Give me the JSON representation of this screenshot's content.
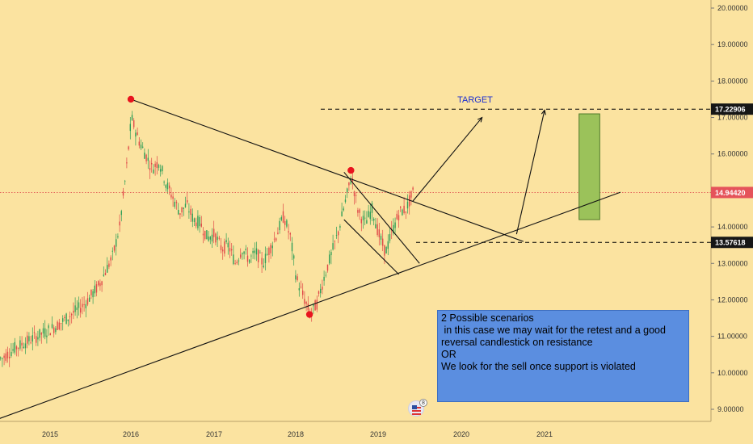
{
  "chart_data": {
    "type": "candlestick",
    "x_ticks": [
      "2015",
      "2016",
      "2017",
      "2018",
      "2019",
      "2020",
      "2021"
    ],
    "y_ticks": [
      "20.00000",
      "19.00000",
      "18.00000",
      "17.00000",
      "16.00000",
      "15.00000",
      "14.00000",
      "13.00000",
      "12.00000",
      "11.00000",
      "10.00000",
      "9.00000"
    ],
    "ylim": [
      8.6,
      20.1
    ],
    "price_tags": [
      {
        "label": "17.22906",
        "value": 17.22906,
        "style": "dark"
      },
      {
        "label": "14.94420",
        "value": 14.9442,
        "style": "red"
      },
      {
        "label": "13.57618",
        "value": 13.57618,
        "style": "dark"
      }
    ],
    "series_path": [
      [
        "2014-06",
        10.4
      ],
      [
        "2014-08",
        10.7
      ],
      [
        "2014-10",
        10.9
      ],
      [
        "2014-12",
        11.1
      ],
      [
        "2015-02",
        11.3
      ],
      [
        "2015-04",
        11.6
      ],
      [
        "2015-06",
        11.9
      ],
      [
        "2015-08",
        12.4
      ],
      [
        "2015-10",
        13.2
      ],
      [
        "2015-11",
        14.0
      ],
      [
        "2015-12",
        15.6
      ],
      [
        "2016-01",
        17.0
      ],
      [
        "2016-02",
        16.4
      ],
      [
        "2016-03",
        16.0
      ],
      [
        "2016-04",
        15.6
      ],
      [
        "2016-05",
        15.8
      ],
      [
        "2016-06",
        15.2
      ],
      [
        "2016-07",
        14.8
      ],
      [
        "2016-08",
        14.4
      ],
      [
        "2016-09",
        14.6
      ],
      [
        "2016-10",
        14.2
      ],
      [
        "2016-11",
        14.1
      ],
      [
        "2016-12",
        13.7
      ],
      [
        "2017-01",
        13.8
      ],
      [
        "2017-02",
        13.4
      ],
      [
        "2017-03",
        13.5
      ],
      [
        "2017-04",
        13.0
      ],
      [
        "2017-05",
        13.4
      ],
      [
        "2017-06",
        13.1
      ],
      [
        "2017-07",
        13.3
      ],
      [
        "2017-08",
        13.0
      ],
      [
        "2017-09",
        13.4
      ],
      [
        "2017-10",
        13.8
      ],
      [
        "2017-11",
        14.3
      ],
      [
        "2017-12",
        13.7
      ],
      [
        "2018-01",
        12.6
      ],
      [
        "2018-02",
        12.1
      ],
      [
        "2018-03",
        11.6
      ],
      [
        "2018-04",
        11.9
      ],
      [
        "2018-05",
        12.6
      ],
      [
        "2018-06",
        13.2
      ],
      [
        "2018-07",
        13.8
      ],
      [
        "2018-08",
        14.6
      ],
      [
        "2018-09",
        15.4
      ],
      [
        "2018-10",
        14.4
      ],
      [
        "2018-11",
        14.1
      ],
      [
        "2018-12",
        14.5
      ],
      [
        "2019-01",
        13.8
      ],
      [
        "2019-02",
        13.3
      ],
      [
        "2019-03",
        13.9
      ],
      [
        "2019-04",
        14.4
      ],
      [
        "2019-05",
        14.5
      ],
      [
        "2019-06",
        14.95
      ]
    ],
    "trendlines": [
      {
        "name": "resistance",
        "from": [
          "2016-01",
          17.5
        ],
        "to": [
          "2020-10",
          13.6
        ]
      },
      {
        "name": "support",
        "from": [
          "2014-05",
          8.7
        ],
        "to": [
          "2021-12",
          14.95
        ]
      },
      {
        "name": "target-arrow-1",
        "from": [
          "2019-06",
          14.7
        ],
        "to": [
          "2020-04",
          17.0
        ]
      },
      {
        "name": "target-arrow-2",
        "from": [
          "2020-09",
          13.8
        ],
        "to": [
          "2021-01",
          17.2
        ]
      },
      {
        "name": "wedge-upper",
        "from": [
          "2018-08",
          15.5
        ],
        "to": [
          "2019-07",
          13.0
        ]
      },
      {
        "name": "wedge-lower",
        "from": [
          "2018-08",
          14.2
        ],
        "to": [
          "2019-04",
          12.7
        ]
      }
    ],
    "pivots": [
      {
        "x": "2016-01",
        "y": 17.5
      },
      {
        "x": "2018-09",
        "y": 15.55
      },
      {
        "x": "2018-03",
        "y": 11.6
      }
    ],
    "target_label": "TARGET",
    "target_box": {
      "x_from": "2021-06",
      "x_to": "2021-09",
      "y_from": 14.2,
      "y_to": 17.1,
      "color": "#9bc25a"
    },
    "note_lines": [
      "2 Possible scenarios",
      " in this case we may wait for the retest and a good",
      "reversal candlestick on resistance",
      "",
      "OR",
      "",
      "We look for the sell once support is violated"
    ],
    "badge_count": "8"
  }
}
